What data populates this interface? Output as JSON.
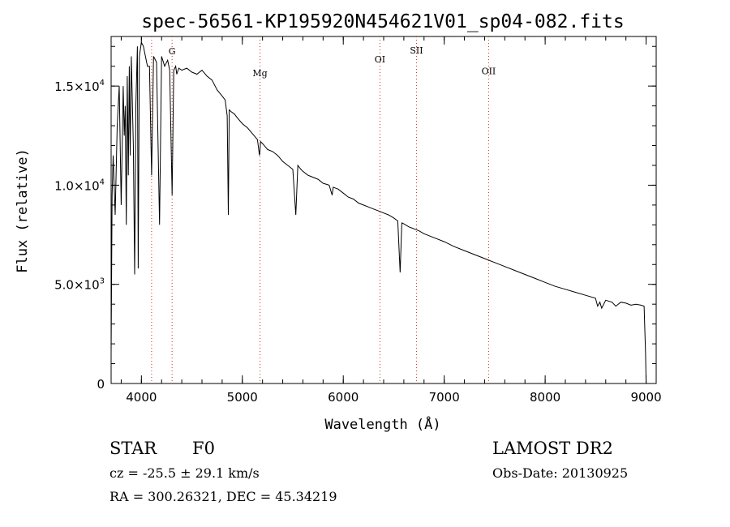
{
  "chart_data": {
    "type": "line",
    "title": "spec-56561-KP195920N454621V01_sp04-082.fits",
    "xlabel": "Wavelength (Å)",
    "ylabel": "Flux (relative)",
    "xlim": [
      3700,
      9100
    ],
    "ylim": [
      0,
      17500
    ],
    "x_ticks": [
      4000,
      5000,
      6000,
      7000,
      8000,
      9000
    ],
    "x_tick_labels": [
      "4000",
      "5000",
      "6000",
      "7000",
      "8000",
      "9000"
    ],
    "y_ticks": [
      0,
      5000,
      10000,
      15000
    ],
    "y_tick_labels": [
      {
        "mantissa": "0",
        "exp": ""
      },
      {
        "mantissa": "5.0×10",
        "exp": "3"
      },
      {
        "mantissa": "1.0×10",
        "exp": "4"
      },
      {
        "mantissa": "1.5×10",
        "exp": "4"
      }
    ],
    "line_markers": [
      {
        "label": "G",
        "wavelength": 4304,
        "label_flux": 16600
      },
      {
        "label": "",
        "wavelength": 4101,
        "label_flux": 0
      },
      {
        "label": "Mg",
        "wavelength": 5175,
        "label_flux": 15500
      },
      {
        "label": "OI",
        "wavelength": 6363,
        "label_flux": 16200
      },
      {
        "label": "SII",
        "wavelength": 6725,
        "label_flux": 16650
      },
      {
        "label": "OII",
        "wavelength": 7440,
        "label_flux": 15600
      }
    ],
    "series": [
      {
        "name": "flux",
        "x": [
          3700,
          3710,
          3720,
          3740,
          3760,
          3780,
          3800,
          3820,
          3830,
          3840,
          3850,
          3860,
          3870,
          3880,
          3889,
          3900,
          3920,
          3933,
          3945,
          3960,
          3968,
          3980,
          4000,
          4020,
          4040,
          4060,
          4080,
          4101,
          4120,
          4150,
          4180,
          4200,
          4230,
          4260,
          4280,
          4304,
          4320,
          4340,
          4350,
          4370,
          4400,
          4450,
          4500,
          4550,
          4600,
          4650,
          4700,
          4750,
          4800,
          4830,
          4850,
          4861,
          4870,
          4890,
          4920,
          4950,
          5000,
          5050,
          5100,
          5150,
          5170,
          5175,
          5180,
          5200,
          5250,
          5300,
          5350,
          5400,
          5450,
          5500,
          5530,
          5550,
          5580,
          5600,
          5650,
          5700,
          5750,
          5800,
          5860,
          5890,
          5900,
          5950,
          6000,
          6050,
          6100,
          6150,
          6200,
          6250,
          6300,
          6350,
          6400,
          6450,
          6500,
          6540,
          6563,
          6580,
          6600,
          6650,
          6700,
          6750,
          6800,
          6900,
          7000,
          7100,
          7200,
          7300,
          7400,
          7500,
          7600,
          7700,
          7800,
          7900,
          8000,
          8100,
          8200,
          8300,
          8400,
          8498,
          8520,
          8542,
          8560,
          8600,
          8662,
          8700,
          8750,
          8800,
          8850,
          8900,
          8950,
          8980,
          8995,
          9000
        ],
        "y": [
          1500,
          9500,
          11500,
          8500,
          13000,
          15000,
          9000,
          15000,
          12500,
          14000,
          8000,
          15500,
          10500,
          16000,
          11500,
          16500,
          12000,
          5500,
          14000,
          17000,
          5800,
          16500,
          17200,
          17000,
          16500,
          16000,
          16000,
          10500,
          16500,
          16200,
          8000,
          16500,
          16000,
          16300,
          15800,
          9500,
          15800,
          16000,
          15600,
          15900,
          15800,
          15900,
          15700,
          15600,
          15800,
          15500,
          15300,
          14800,
          14500,
          14300,
          13500,
          8500,
          13800,
          13700,
          13600,
          13400,
          13100,
          12900,
          12600,
          12300,
          11500,
          11800,
          12200,
          12100,
          11800,
          11700,
          11500,
          11200,
          11000,
          10800,
          8500,
          11000,
          10800,
          10700,
          10500,
          10400,
          10300,
          10100,
          10000,
          9500,
          9900,
          9800,
          9600,
          9400,
          9300,
          9100,
          9000,
          8900,
          8800,
          8700,
          8600,
          8500,
          8350,
          8200,
          5600,
          8100,
          8050,
          7900,
          7800,
          7700,
          7550,
          7350,
          7150,
          6900,
          6700,
          6500,
          6300,
          6100,
          5900,
          5700,
          5500,
          5300,
          5100,
          4900,
          4750,
          4600,
          4450,
          4300,
          3900,
          4100,
          3800,
          4200,
          4100,
          3900,
          4100,
          4050,
          3950,
          4000,
          3950,
          3900,
          1500,
          0
        ]
      }
    ]
  },
  "info": {
    "object_class": "STAR",
    "subclass": "F0",
    "cz": "cz = -25.5 ± 29.1 km/s",
    "radec": "RA = 300.26321, DEC =  45.34219",
    "survey": "LAMOST DR2",
    "obs_date": "Obs-Date: 20130925"
  }
}
